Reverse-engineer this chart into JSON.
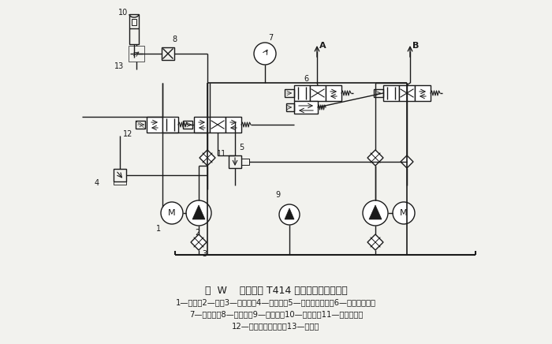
{
  "title": "图  W    改进后的 T414 型液压站液压系统图",
  "caption_line1": "1—电机；2—泵；3—滤油器；4—溢流阀；5—电液调压装置；6—电磁换向阀；",
  "caption_line2": "7—压力表；8—节流阀；9—温度计；10—蓄能器；11—精过滤器；",
  "caption_line3": "12—二位二通电磁阀；13—顺序阀",
  "bg_color": "#f2f2ee",
  "lc": "#1a1a1a",
  "fig_w": 7.0,
  "fig_h": 4.36,
  "dpi": 100
}
